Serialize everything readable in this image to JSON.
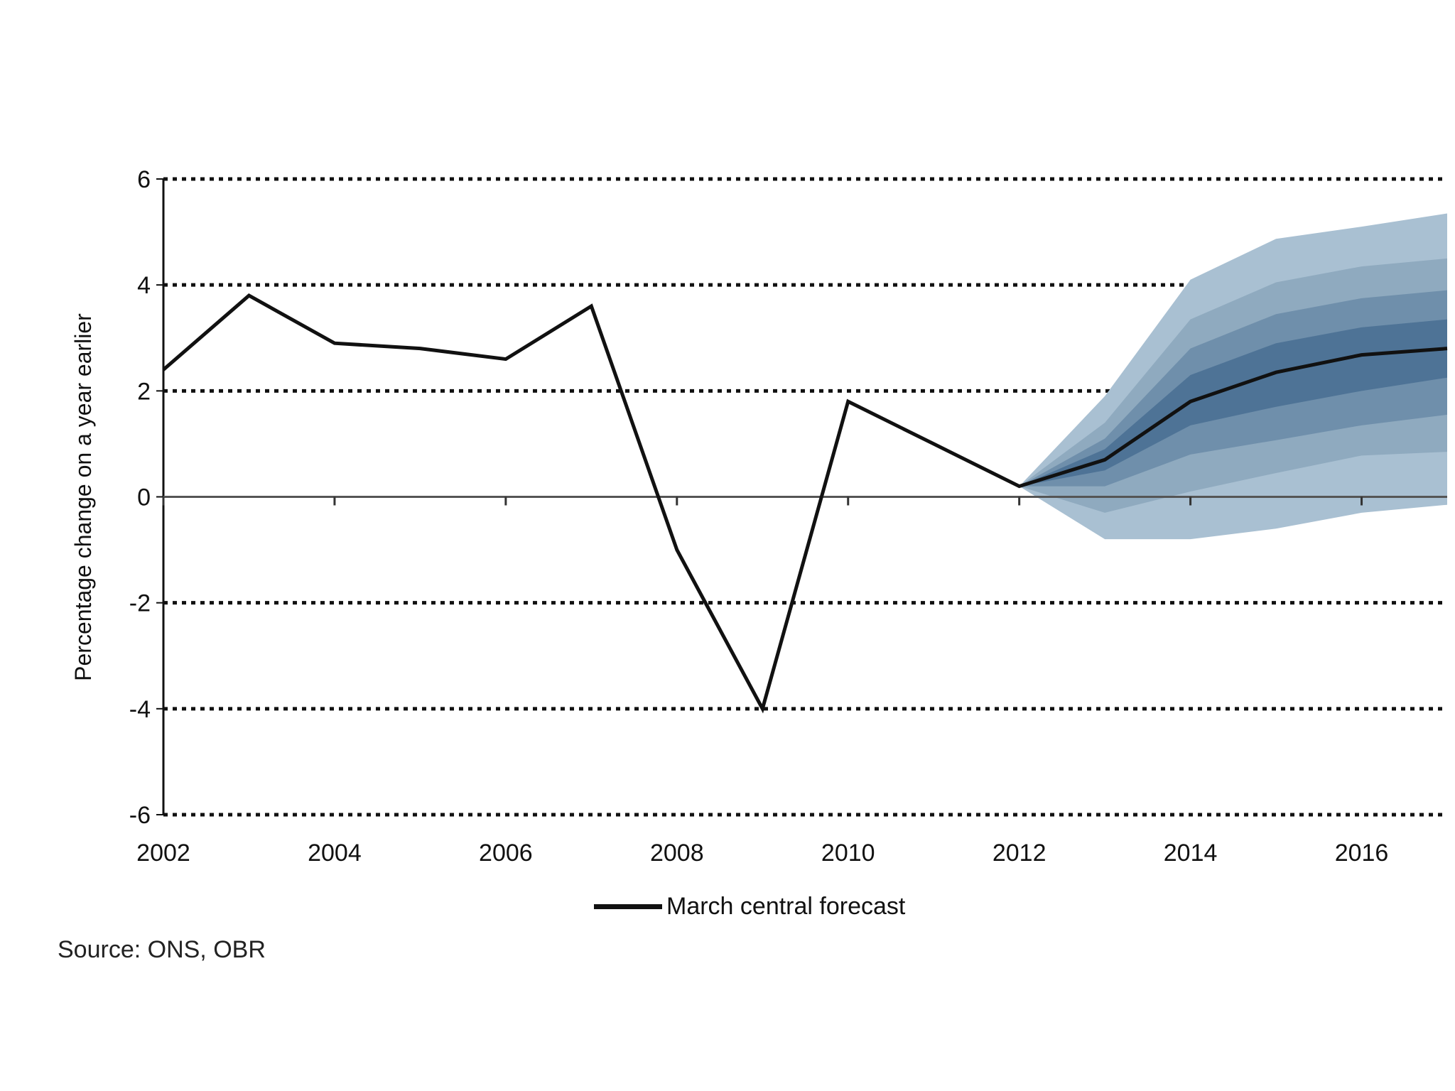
{
  "chart_data": {
    "type": "line",
    "title": "",
    "xlabel": "",
    "ylabel": "Percentage change on a year earlier",
    "xlim": [
      2002,
      2017
    ],
    "ylim": [
      -6,
      6
    ],
    "x_ticks": [
      "2002",
      "2004",
      "2006",
      "2008",
      "2010",
      "2012",
      "2014",
      "2016"
    ],
    "y_ticks": [
      "6",
      "4",
      "2",
      "0",
      "-2",
      "-4",
      "-6"
    ],
    "grid": "horizontal dotted",
    "legend_position": "bottom-center",
    "series": [
      {
        "name": "March central forecast",
        "x": [
          2002,
          2003,
          2004,
          2005,
          2006,
          2007,
          2008,
          2009,
          2010,
          2011,
          2012,
          2013,
          2014,
          2015,
          2016,
          2017
        ],
        "values": [
          2.4,
          3.8,
          2.9,
          2.8,
          2.6,
          3.6,
          -1.0,
          -4.0,
          1.8,
          1.0,
          0.2,
          0.7,
          1.8,
          2.35,
          2.68,
          2.8
        ],
        "color": "#111111"
      }
    ],
    "fan": {
      "x": [
        2012,
        2013,
        2014,
        2015,
        2016,
        2017
      ],
      "bounds_top_to_bottom": [
        [
          0.2,
          1.9,
          4.1,
          4.87,
          5.1,
          5.35
        ],
        [
          0.2,
          1.4,
          3.35,
          4.05,
          4.35,
          4.5
        ],
        [
          0.2,
          1.1,
          2.8,
          3.45,
          3.75,
          3.9
        ],
        [
          0.2,
          0.9,
          2.3,
          2.9,
          3.2,
          3.35
        ],
        [
          0.2,
          0.5,
          1.35,
          1.7,
          2.0,
          2.25
        ],
        [
          0.2,
          0.2,
          0.8,
          1.07,
          1.35,
          1.55
        ],
        [
          0.2,
          -0.3,
          0.1,
          0.45,
          0.78,
          0.85
        ],
        [
          0.2,
          -0.8,
          -0.8,
          -0.6,
          -0.3,
          -0.15
        ]
      ],
      "colors": [
        "#a9c0d2",
        "#8faabf",
        "#6f8fab",
        "#4e7396"
      ]
    }
  },
  "legend": {
    "label": "March central forecast"
  },
  "source": "Source: ONS, OBR"
}
